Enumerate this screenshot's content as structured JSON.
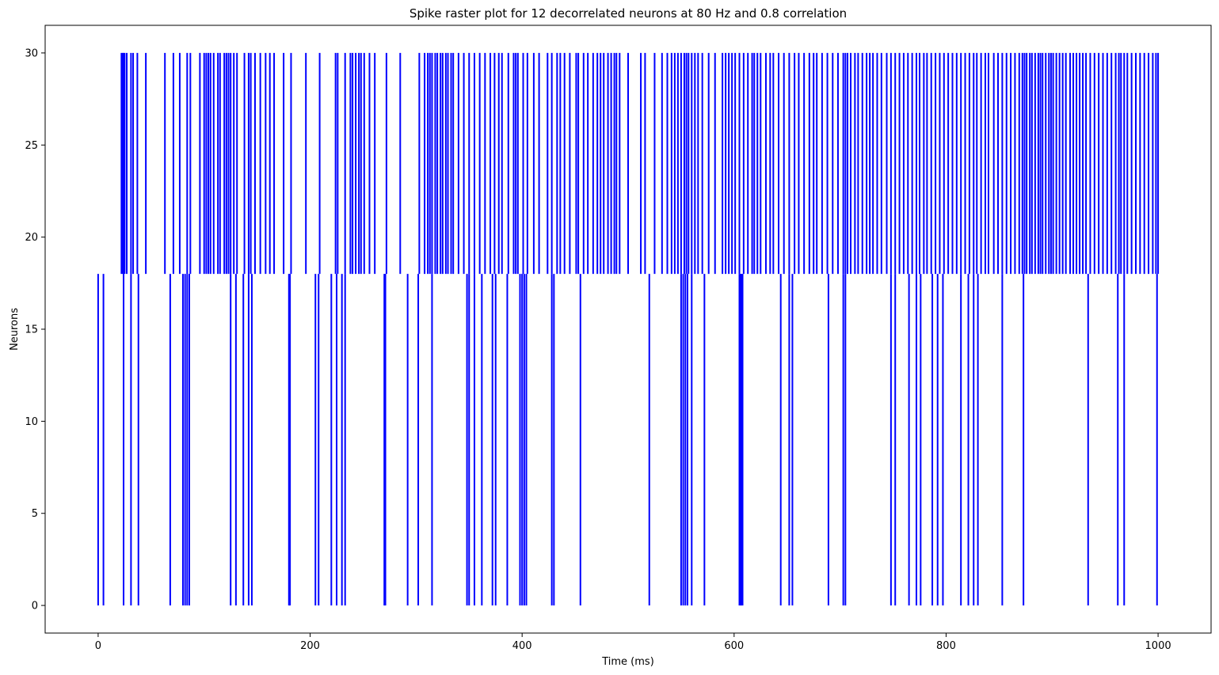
{
  "chart_data": {
    "type": "raster",
    "title": "Spike raster plot for 12 decorrelated neurons at 80 Hz and 0.8 correlation",
    "xlabel": "Time (ms)",
    "ylabel": "Neurons",
    "xlim": [
      -50,
      1050
    ],
    "ylim": [
      -1.5,
      31.5
    ],
    "xticks": [
      0,
      200,
      400,
      600,
      800,
      1000
    ],
    "yticks": [
      0,
      5,
      10,
      15,
      20,
      25,
      30
    ],
    "grid": false,
    "color": "#0000ff",
    "marker": "vertical-line",
    "note_structure": "rows 0-18: first block of neurons; rows 18-30: second block of neurons",
    "groups": [
      {
        "rows": [
          0,
          18
        ],
        "spike_times": [
          0,
          5,
          24,
          31,
          38,
          68,
          80,
          82,
          84,
          86,
          125,
          130,
          137,
          142,
          145,
          180,
          181,
          205,
          208,
          220,
          225,
          230,
          233,
          270,
          271,
          292,
          302,
          315,
          348,
          350,
          355,
          362,
          372,
          375,
          386,
          398,
          400,
          402,
          404,
          428,
          430,
          455,
          520,
          550,
          552,
          554,
          556,
          560,
          572,
          605,
          606,
          607,
          608,
          644,
          652,
          655,
          689,
          703,
          705,
          748,
          752,
          765,
          772,
          776,
          787,
          792,
          797,
          814,
          821,
          826,
          830,
          853,
          873,
          934,
          962,
          968,
          999
        ]
      },
      {
        "rows": [
          18,
          30
        ],
        "spike_times": [
          22,
          23,
          24,
          25,
          27,
          31,
          33,
          37,
          45,
          63,
          71,
          77,
          84,
          87,
          96,
          100,
          102,
          104,
          106,
          109,
          113,
          115,
          119,
          121,
          123,
          125,
          128,
          131,
          138,
          142,
          144,
          148,
          153,
          158,
          162,
          166,
          175,
          182,
          196,
          209,
          224,
          226,
          233,
          238,
          240,
          243,
          246,
          248,
          251,
          256,
          261,
          272,
          285,
          303,
          308,
          311,
          313,
          315,
          318,
          320,
          323,
          325,
          328,
          330,
          333,
          335,
          340,
          345,
          350,
          355,
          360,
          365,
          370,
          374,
          378,
          381,
          387,
          392,
          394,
          396,
          401,
          405,
          411,
          416,
          424,
          428,
          433,
          436,
          440,
          445,
          451,
          453,
          458,
          462,
          467,
          471,
          474,
          477,
          481,
          484,
          487,
          489,
          492,
          500,
          512,
          516,
          525,
          532,
          537,
          541,
          544,
          547,
          550,
          553,
          555,
          557,
          560,
          563,
          566,
          570,
          576,
          582,
          589,
          592,
          595,
          598,
          601,
          605,
          609,
          613,
          617,
          619,
          622,
          625,
          630,
          634,
          637,
          642,
          647,
          652,
          657,
          661,
          666,
          671,
          675,
          678,
          683,
          688,
          693,
          698,
          703,
          705,
          707,
          710,
          714,
          717,
          721,
          725,
          728,
          731,
          735,
          739,
          744,
          748,
          752,
          756,
          760,
          764,
          768,
          772,
          775,
          779,
          782,
          786,
          790,
          794,
          798,
          802,
          806,
          810,
          814,
          818,
          822,
          826,
          829,
          833,
          837,
          840,
          845,
          849,
          853,
          857,
          861,
          865,
          869,
          872,
          874,
          876,
          879,
          881,
          884,
          887,
          889,
          891,
          894,
          897,
          899,
          901,
          904,
          907,
          910,
          913,
          917,
          920,
          923,
          926,
          929,
          932,
          936,
          940,
          944,
          948,
          952,
          956,
          960,
          963,
          965,
          968,
          971,
          975,
          979,
          983,
          987,
          991,
          995,
          998,
          1000
        ]
      }
    ]
  }
}
